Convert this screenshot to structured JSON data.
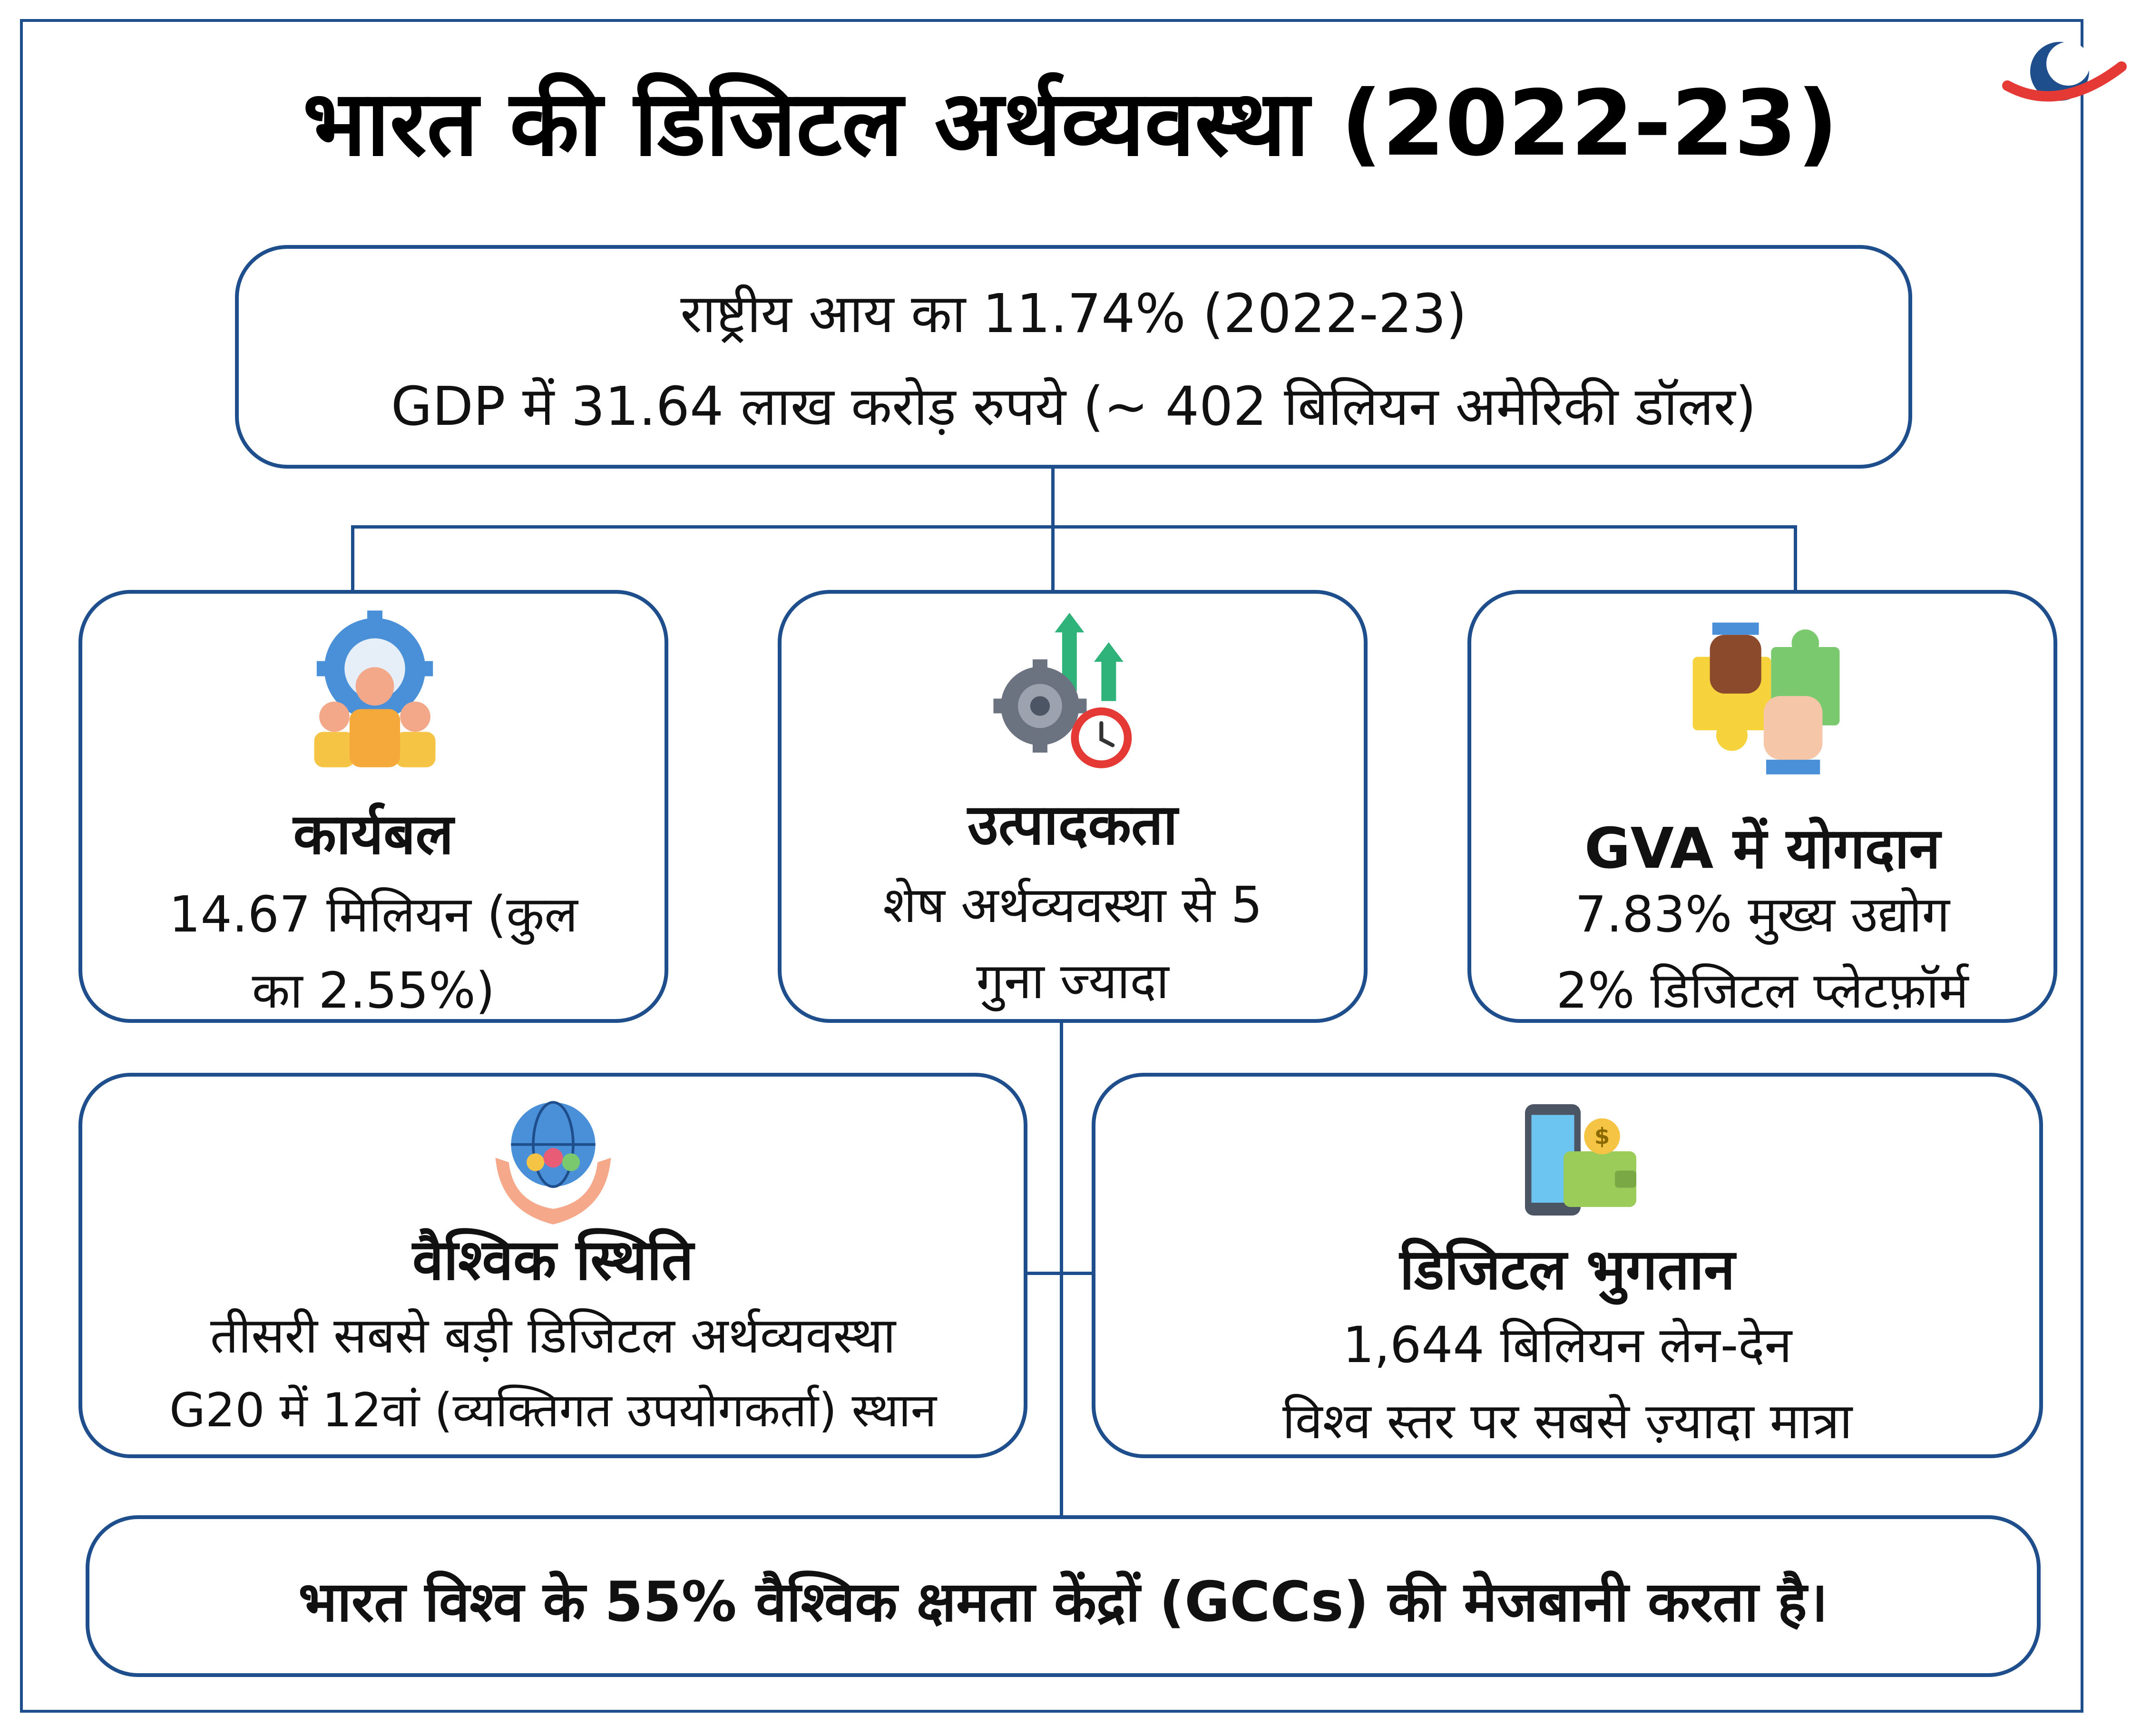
{
  "title": "भारत की डिजिटल अर्थव्यवस्था (2022-23)",
  "top_box": {
    "line1": "राष्ट्रीय आय का 11.74% (2022-23)",
    "line2": "GDP में 31.64 लाख करोड़ रुपये (~ 402 बिलियन अमेरिकी डॉलर)"
  },
  "workforce": {
    "icon": "people-gear-icon",
    "heading": "कार्यबल",
    "line1": "14.67 मिलियन (कुल",
    "line2": "का 2.55%)"
  },
  "productivity": {
    "icon": "gear-growth-clock-icon",
    "heading": "उत्पादकता",
    "line1": "शेष अर्थव्यवस्था से 5",
    "line2": "गुना ज्यादा"
  },
  "gva": {
    "icon": "puzzle-hands-icon",
    "heading": "GVA में योगदान",
    "line1": "7.83% मुख्य उद्योग",
    "line2": "2% डिजिटल प्लेटफ़ॉर्म"
  },
  "global": {
    "icon": "globe-hands-icon",
    "heading": "वैश्विक स्थिति",
    "line1": "तीसरी सबसे बड़ी डिजिटल अर्थव्यवस्था",
    "line2": "G20 में 12वां (व्यक्तिगत उपयोगकर्ता) स्थान"
  },
  "payments": {
    "icon": "phone-wallet-icon",
    "heading": "डिजिटल भुगतान",
    "line1": "1,644 बिलियन लेन-देन",
    "line2": "विश्व स्तर पर सबसे ज़्यादा मात्रा"
  },
  "bottom": {
    "text": "भारत विश्व के 55% वैश्विक क्षमता केंद्रों (GCCs) की मेजबानी करता है।"
  },
  "colors": {
    "border": "#1f4e8c",
    "logo_blue": "#1f4e8c",
    "logo_red": "#e53935"
  }
}
